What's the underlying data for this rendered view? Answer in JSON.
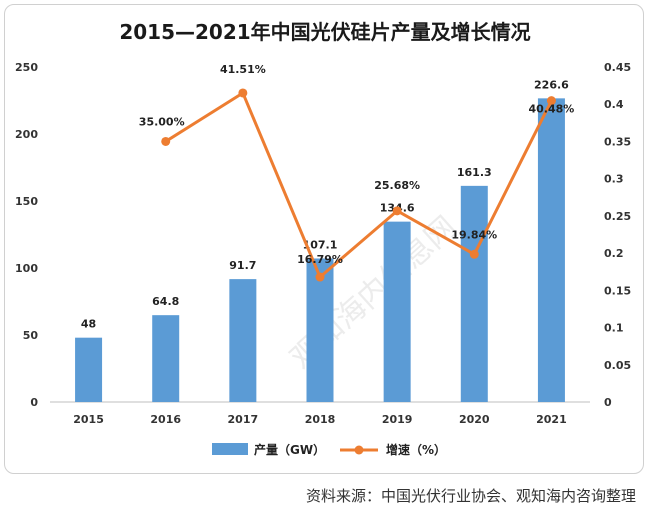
{
  "chart_data": {
    "type": "bar",
    "title": "2015—2021年中国光伏硅片产量及增长情况",
    "categories": [
      "2015",
      "2016",
      "2017",
      "2018",
      "2019",
      "2020",
      "2021"
    ],
    "series": [
      {
        "name": "产量（GW）",
        "type": "bar",
        "axis": "left",
        "color": "#5b9bd5",
        "values": [
          48,
          64.8,
          91.7,
          107.1,
          134.6,
          161.3,
          226.6
        ],
        "labels": [
          "48",
          "64.8",
          "91.7",
          "107.1",
          "134.6",
          "161.3",
          "226.6"
        ]
      },
      {
        "name": "增速（%）",
        "type": "line",
        "axis": "right",
        "color": "#ed7d31",
        "values": [
          null,
          0.35,
          0.4151,
          0.1679,
          0.2568,
          0.1984,
          0.4048
        ],
        "labels": [
          "",
          "35.00%",
          "41.51%",
          "16.79%",
          "25.68%",
          "19.84%",
          "40.48%"
        ]
      }
    ],
    "y_left": {
      "lim": [
        0,
        250
      ],
      "ticks": [
        0,
        50,
        100,
        150,
        200,
        250
      ],
      "tick_labels": [
        "0",
        "50",
        "100",
        "150",
        "200",
        "250"
      ]
    },
    "y_right": {
      "lim": [
        0,
        0.45
      ],
      "ticks": [
        0,
        0.05,
        0.1,
        0.15,
        0.2,
        0.25,
        0.3,
        0.35,
        0.4,
        0.45
      ],
      "tick_labels": [
        "0",
        "0.05",
        "0.1",
        "0.15",
        "0.2",
        "0.25",
        "0.3",
        "0.35",
        "0.4",
        "0.45"
      ]
    },
    "grid": false,
    "legend_position": "bottom"
  },
  "source": "资料来源：中国光伏行业协会、观知海内咨询整理",
  "watermark": "观知海内信息网"
}
